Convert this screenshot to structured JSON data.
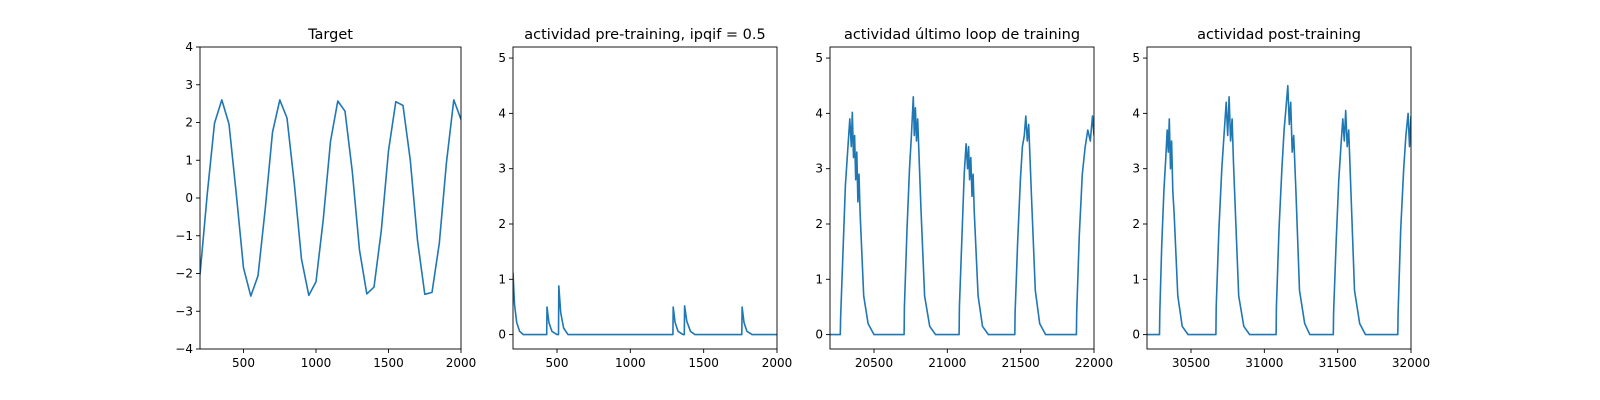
{
  "chart_data": [
    {
      "type": "line",
      "title": "Target",
      "xlim": [
        200,
        2000
      ],
      "ylim": [
        -4,
        4
      ],
      "xticks": [
        500,
        1000,
        1500,
        2000
      ],
      "yticks": [
        -4,
        -3,
        -2,
        -1,
        0,
        1,
        2,
        3,
        4
      ],
      "xtick_labels": [
        "500",
        "1000",
        "1500",
        "2000"
      ],
      "ytick_labels": [
        "−4",
        "−3",
        "−2",
        "−1",
        "0",
        "1",
        "2",
        "3",
        "4"
      ],
      "series": [
        {
          "color": "#1f77b4",
          "x": [
            200,
            250,
            300,
            350,
            400,
            450,
            500,
            550,
            600,
            650,
            700,
            750,
            800,
            850,
            900,
            950,
            1000,
            1050,
            1100,
            1150,
            1200,
            1250,
            1300,
            1350,
            1400,
            1450,
            1500,
            1550,
            1600,
            1650,
            1700,
            1750,
            1800,
            1850,
            1900,
            1950,
            2000
          ],
          "y": [
            -2.03,
            0.12,
            1.98,
            2.6,
            1.96,
            0.1,
            -1.85,
            -2.6,
            -2.06,
            -0.27,
            1.74,
            2.6,
            2.12,
            0.38,
            -1.62,
            -2.58,
            -2.22,
            -0.56,
            1.5,
            2.57,
            2.3,
            0.7,
            -1.38,
            -2.54,
            -2.36,
            -0.86,
            1.25,
            2.55,
            2.45,
            1.0,
            -1.12,
            -2.55,
            -2.5,
            -1.2,
            0.95,
            2.6,
            2.08
          ]
        }
      ]
    },
    {
      "type": "line",
      "title": "actividad pre-training, ipqif = 0.5",
      "xlim": [
        200,
        2000
      ],
      "ylim": [
        -0.26,
        5.2
      ],
      "xticks": [
        500,
        1000,
        1500,
        2000
      ],
      "yticks": [
        0,
        1,
        2,
        3,
        4,
        5
      ],
      "xtick_labels": [
        "500",
        "1000",
        "1500",
        "2000"
      ],
      "ytick_labels": [
        "0",
        "1",
        "2",
        "3",
        "4",
        "5"
      ],
      "series": [
        {
          "color": "#1f77b4",
          "x": [
            200,
            210,
            225,
            245,
            270,
            430,
            432,
            445,
            465,
            500,
            510,
            512,
            525,
            545,
            575,
            1290,
            1292,
            1305,
            1325,
            1360,
            1368,
            1370,
            1385,
            1410,
            1440,
            1760,
            1762,
            1775,
            1795,
            1830,
            2000
          ],
          "y": [
            1.12,
            0.55,
            0.22,
            0.06,
            0.0,
            0.0,
            0.5,
            0.22,
            0.06,
            0.0,
            0.0,
            0.88,
            0.4,
            0.12,
            0.0,
            0.0,
            0.5,
            0.22,
            0.06,
            0.0,
            0.0,
            0.52,
            0.24,
            0.06,
            0.0,
            0.0,
            0.5,
            0.22,
            0.06,
            0.0,
            0.0
          ]
        }
      ]
    },
    {
      "type": "line",
      "title": "actividad último loop de training",
      "xlim": [
        20200,
        22000
      ],
      "ylim": [
        -0.26,
        5.2
      ],
      "xticks": [
        20500,
        21000,
        21500,
        22000
      ],
      "yticks": [
        0,
        1,
        2,
        3,
        4,
        5
      ],
      "xtick_labels": [
        "20500",
        "21000",
        "21500",
        "22000"
      ],
      "ytick_labels": [
        "0",
        "1",
        "2",
        "3",
        "4",
        "5"
      ],
      "series": [
        {
          "color": "#1f77b4",
          "x": [
            20200,
            20270,
            20272,
            20290,
            20305,
            20320,
            20335,
            20345,
            20352,
            20360,
            20368,
            20375,
            20383,
            20390,
            20398,
            20405,
            20430,
            20460,
            20500,
            20705,
            20707,
            20725,
            20742,
            20755,
            20768,
            20775,
            20782,
            20790,
            20798,
            20810,
            20820,
            20845,
            20880,
            20920,
            21080,
            21082,
            21100,
            21115,
            21128,
            21138,
            21145,
            21152,
            21160,
            21168,
            21176,
            21184,
            21210,
            21240,
            21280,
            21460,
            21462,
            21480,
            21498,
            21512,
            21525,
            21535,
            21545,
            21555,
            21565,
            21575,
            21600,
            21630,
            21670,
            21880,
            21882,
            21900,
            21920,
            21940,
            21958,
            21975,
            21990,
            22000
          ],
          "y": [
            0.0,
            0.0,
            0.3,
            1.6,
            2.7,
            3.3,
            3.9,
            3.4,
            4.02,
            3.2,
            3.6,
            2.8,
            3.3,
            2.4,
            2.9,
            2.2,
            0.7,
            0.2,
            0.0,
            0.0,
            0.5,
            1.9,
            3.0,
            3.6,
            4.3,
            3.6,
            4.1,
            3.5,
            3.9,
            3.0,
            2.3,
            0.7,
            0.15,
            0.0,
            0.0,
            0.5,
            1.8,
            2.9,
            3.45,
            3.0,
            3.4,
            2.8,
            3.2,
            2.5,
            2.9,
            2.2,
            0.7,
            0.15,
            0.0,
            0.0,
            0.4,
            1.7,
            2.8,
            3.4,
            3.6,
            3.95,
            3.5,
            3.8,
            3.1,
            2.4,
            0.8,
            0.2,
            0.0,
            0.0,
            0.4,
            1.8,
            2.9,
            3.4,
            3.7,
            3.5,
            3.95,
            3.6
          ]
        }
      ]
    },
    {
      "type": "line",
      "title": "actividad post-training",
      "xlim": [
        30200,
        32000
      ],
      "ylim": [
        -0.26,
        5.2
      ],
      "xticks": [
        30500,
        31000,
        31500,
        32000
      ],
      "yticks": [
        0,
        1,
        2,
        3,
        4,
        5
      ],
      "xtick_labels": [
        "30500",
        "31000",
        "31500",
        "32000"
      ],
      "ytick_labels": [
        "0",
        "1",
        "2",
        "3",
        "4",
        "5"
      ],
      "series": [
        {
          "color": "#1f77b4",
          "x": [
            30200,
            30285,
            30287,
            30300,
            30315,
            30328,
            30338,
            30345,
            30352,
            30360,
            30368,
            30376,
            30385,
            30410,
            30440,
            30480,
            30670,
            30672,
            30690,
            30710,
            30725,
            30740,
            30750,
            30760,
            30770,
            30780,
            30790,
            30800,
            30825,
            30860,
            30900,
            31080,
            31082,
            31100,
            31120,
            31135,
            31148,
            31160,
            31170,
            31180,
            31190,
            31200,
            31215,
            31240,
            31275,
            31310,
            31470,
            31472,
            31490,
            31508,
            31522,
            31535,
            31545,
            31555,
            31565,
            31575,
            31590,
            31615,
            31650,
            31690,
            31910,
            31912,
            31930,
            31950,
            31965,
            31980,
            31990,
            32000
          ],
          "y": [
            0.0,
            0.0,
            0.4,
            1.6,
            2.6,
            3.2,
            3.7,
            3.3,
            3.9,
            3.0,
            3.5,
            2.6,
            2.2,
            0.7,
            0.15,
            0.0,
            0.0,
            0.5,
            1.9,
            3.0,
            3.6,
            4.2,
            3.6,
            4.3,
            3.5,
            3.9,
            3.1,
            2.4,
            0.7,
            0.15,
            0.0,
            0.0,
            0.5,
            1.9,
            3.0,
            3.7,
            4.1,
            4.5,
            3.8,
            4.2,
            3.3,
            3.6,
            2.6,
            0.8,
            0.2,
            0.0,
            0.0,
            0.4,
            1.7,
            2.8,
            3.4,
            3.9,
            3.5,
            4.05,
            3.4,
            3.7,
            2.6,
            0.8,
            0.2,
            0.0,
            0.0,
            0.4,
            1.9,
            3.0,
            3.6,
            4.0,
            3.4,
            3.95
          ]
        }
      ]
    }
  ]
}
